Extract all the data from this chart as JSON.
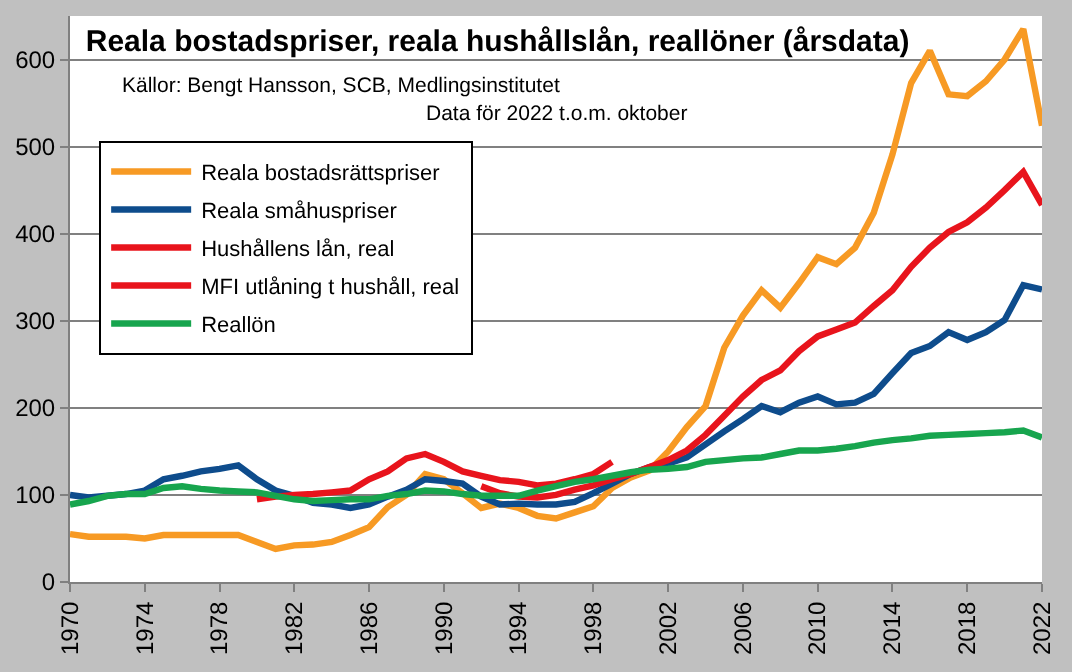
{
  "chart_data": {
    "type": "line",
    "title": "Reala bostadspriser, reala hushållslån, reallöner (årsdata)",
    "annotations": [
      "Källor: Bengt Hansson, SCB, Medlingsinstitutet",
      "Data för 2022 t.o.m. oktober"
    ],
    "xlim": [
      1970,
      2022
    ],
    "xticks": [
      1970,
      1974,
      1978,
      1982,
      1986,
      1990,
      1994,
      1998,
      2002,
      2006,
      2010,
      2014,
      2018,
      2022
    ],
    "ylim": [
      0,
      650
    ],
    "yticks": [
      0,
      100,
      200,
      300,
      400,
      500,
      600
    ],
    "grid": "y",
    "legend": "top left",
    "line_style": "solid",
    "marker": "none",
    "series": [
      {
        "name": "Reala bostadsrättspriser",
        "color": "#f79a24",
        "x": [
          1970,
          1971,
          1972,
          1973,
          1974,
          1975,
          1976,
          1977,
          1978,
          1979,
          1980,
          1981,
          1982,
          1983,
          1984,
          1985,
          1986,
          1987,
          1988,
          1989,
          1990,
          1991,
          1992,
          1993,
          1994,
          1995,
          1996,
          1997,
          1998,
          1999,
          2000,
          2001,
          2002,
          2003,
          2004,
          2005,
          2006,
          2007,
          2008,
          2009,
          2010,
          2011,
          2012,
          2013,
          2014,
          2015,
          2016,
          2017,
          2018,
          2019,
          2020,
          2021,
          2022
        ],
        "values": [
          55,
          52,
          52,
          52,
          50,
          54,
          54,
          54,
          54,
          54,
          46,
          38,
          42,
          43,
          46,
          54,
          63,
          86,
          100,
          124,
          118,
          102,
          85,
          90,
          85,
          76,
          73,
          80,
          87,
          108,
          120,
          128,
          150,
          178,
          202,
          269,
          306,
          335,
          315,
          343,
          373,
          365,
          384,
          424,
          491,
          573,
          610,
          560,
          558,
          575,
          600,
          635,
          524
        ]
      },
      {
        "name": "Reala småhuspriser",
        "color": "#0e4c8c",
        "x": [
          1970,
          1971,
          1972,
          1973,
          1974,
          1975,
          1976,
          1977,
          1978,
          1979,
          1980,
          1981,
          1982,
          1983,
          1984,
          1985,
          1986,
          1987,
          1988,
          1989,
          1990,
          1991,
          1992,
          1993,
          1994,
          1995,
          1996,
          1997,
          1998,
          1999,
          2000,
          2001,
          2002,
          2003,
          2004,
          2005,
          2006,
          2007,
          2008,
          2009,
          2010,
          2011,
          2012,
          2013,
          2014,
          2015,
          2016,
          2017,
          2018,
          2019,
          2020,
          2021,
          2022
        ],
        "values": [
          100,
          97,
          99,
          101,
          105,
          118,
          122,
          127,
          130,
          134,
          118,
          105,
          99,
          91,
          89,
          85,
          89,
          98,
          106,
          118,
          116,
          113,
          98,
          89,
          90,
          89,
          89,
          92,
          102,
          113,
          124,
          132,
          136,
          143,
          158,
          173,
          187,
          202,
          195,
          206,
          213,
          204,
          206,
          216,
          240,
          263,
          271,
          287,
          278,
          287,
          301,
          341,
          336
        ]
      },
      {
        "name": "Hushållens lån, real",
        "color": "#e8141c",
        "x": [
          1980,
          1981,
          1982,
          1983,
          1984,
          1985,
          1986,
          1987,
          1988,
          1989,
          1990,
          1991,
          1992,
          1993,
          1994,
          1995,
          1996,
          1997,
          1998,
          1999
        ],
        "values": [
          95,
          98,
          100,
          101,
          103,
          105,
          118,
          127,
          142,
          147,
          138,
          127,
          122,
          117,
          115,
          111,
          113,
          118,
          124,
          138
        ]
      },
      {
        "name": "MFI utlåning t hushåll, real",
        "color": "#e8141c",
        "x": [
          1992,
          1993,
          1994,
          1995,
          1996,
          1997,
          1998,
          1999,
          2000,
          2001,
          2002,
          2003,
          2004,
          2005,
          2006,
          2007,
          2008,
          2009,
          2010,
          2011,
          2012,
          2013,
          2014,
          2015,
          2016,
          2017,
          2018,
          2019,
          2020,
          2021,
          2022
        ],
        "values": [
          110,
          102,
          98,
          97,
          100,
          106,
          111,
          118,
          124,
          132,
          140,
          151,
          169,
          191,
          213,
          232,
          243,
          265,
          282,
          290,
          298,
          317,
          335,
          362,
          384,
          402,
          413,
          430,
          450,
          471,
          433
        ]
      },
      {
        "name": "Reallön",
        "color": "#17a54e",
        "x": [
          1970,
          1971,
          1972,
          1973,
          1974,
          1975,
          1976,
          1977,
          1978,
          1979,
          1980,
          1981,
          1982,
          1983,
          1984,
          1985,
          1986,
          1987,
          1988,
          1989,
          1990,
          1991,
          1992,
          1993,
          1994,
          1995,
          1996,
          1997,
          1998,
          1999,
          2000,
          2001,
          2002,
          2003,
          2004,
          2005,
          2006,
          2007,
          2008,
          2009,
          2010,
          2011,
          2012,
          2013,
          2014,
          2015,
          2016,
          2017,
          2018,
          2019,
          2020,
          2021,
          2022
        ],
        "values": [
          89,
          93,
          99,
          101,
          101,
          108,
          110,
          107,
          105,
          104,
          103,
          99,
          95,
          93,
          94,
          95,
          95,
          99,
          101,
          105,
          104,
          101,
          99,
          99,
          99,
          105,
          110,
          115,
          118,
          122,
          126,
          129,
          130,
          132,
          138,
          140,
          142,
          143,
          147,
          151,
          151,
          153,
          156,
          160,
          163,
          165,
          168,
          169,
          170,
          171,
          172,
          174,
          166
        ]
      }
    ]
  }
}
